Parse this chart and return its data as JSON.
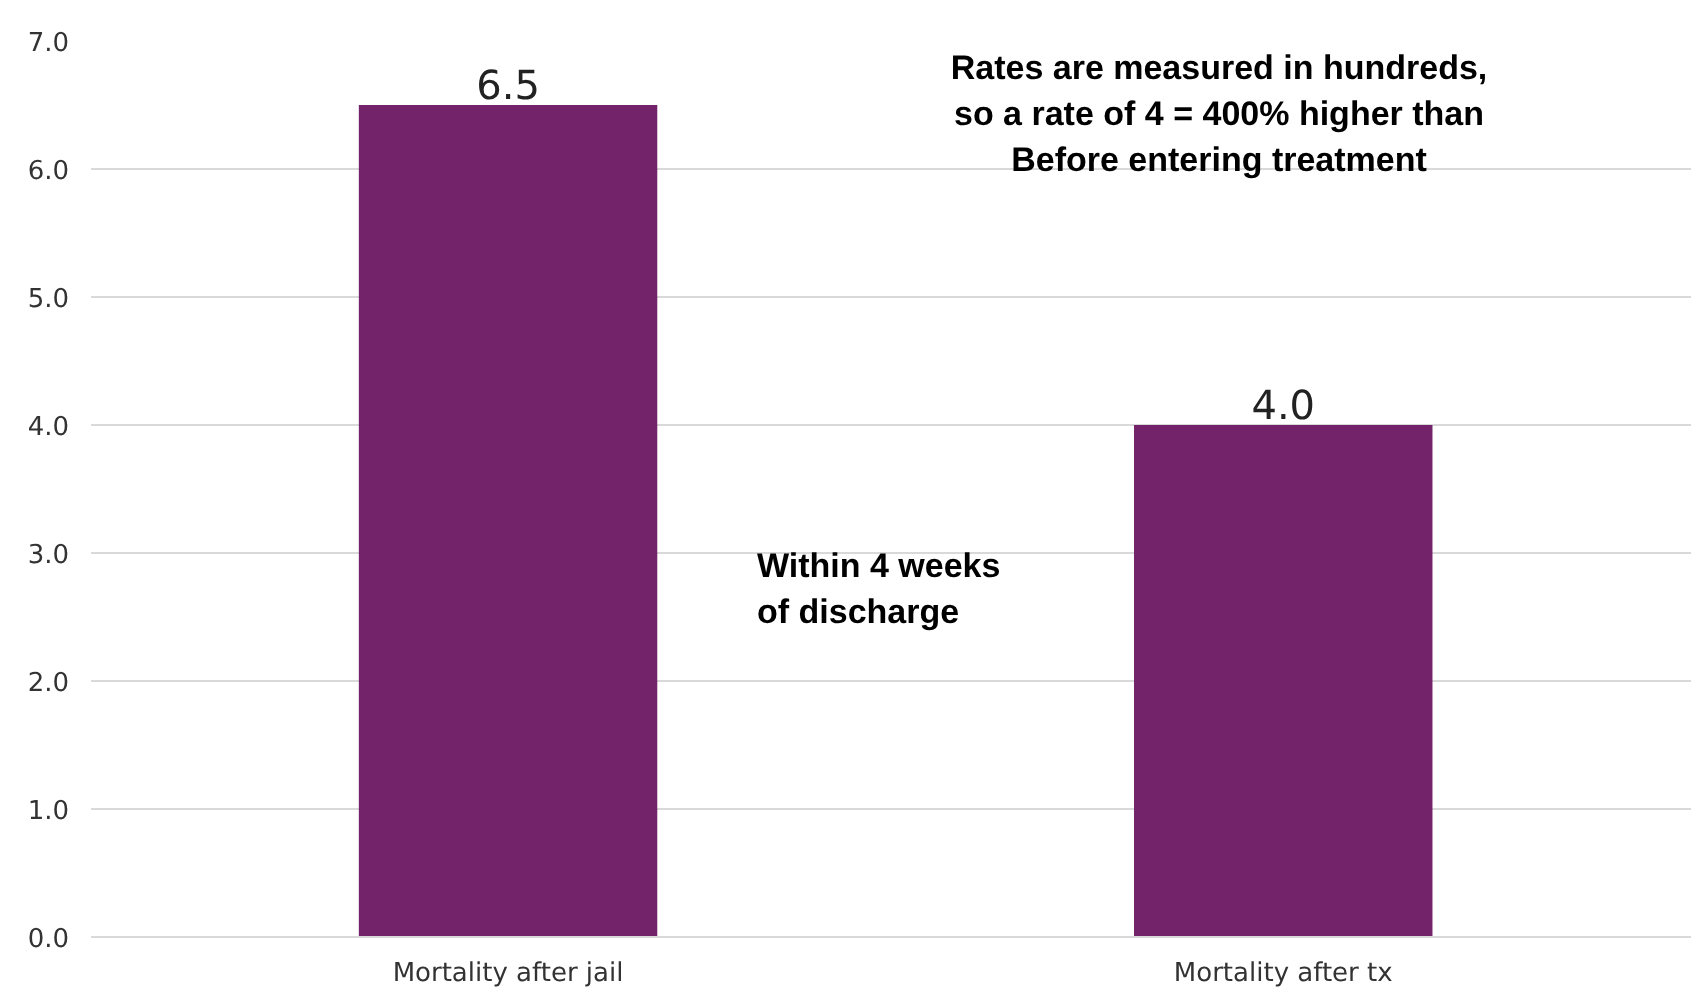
{
  "chart_data": {
    "type": "bar",
    "categories": [
      "Mortality after jail",
      "Mortality after tx"
    ],
    "values": [
      6.5,
      4.0
    ],
    "color": "#722369",
    "data_labels": true,
    "value_labels": [
      "6.5",
      "4.0"
    ],
    "ylim": [
      0,
      7
    ],
    "yticks": [
      {
        "value": 0,
        "label": "0.0"
      },
      {
        "value": 1,
        "label": "1.0"
      },
      {
        "value": 2,
        "label": "2.0"
      },
      {
        "value": 3,
        "label": "3.0"
      },
      {
        "value": 4,
        "label": "4.0"
      },
      {
        "value": 5,
        "label": "5.0"
      },
      {
        "value": 6,
        "label": "6.0"
      },
      {
        "value": 7,
        "label": "7.0"
      }
    ],
    "grid": "y",
    "annotations": [
      "Rates are measured in hundreds,\nso a rate of 4 = 400% higher than\nBefore entering treatment",
      "Within 4 weeks\nof discharge"
    ]
  }
}
